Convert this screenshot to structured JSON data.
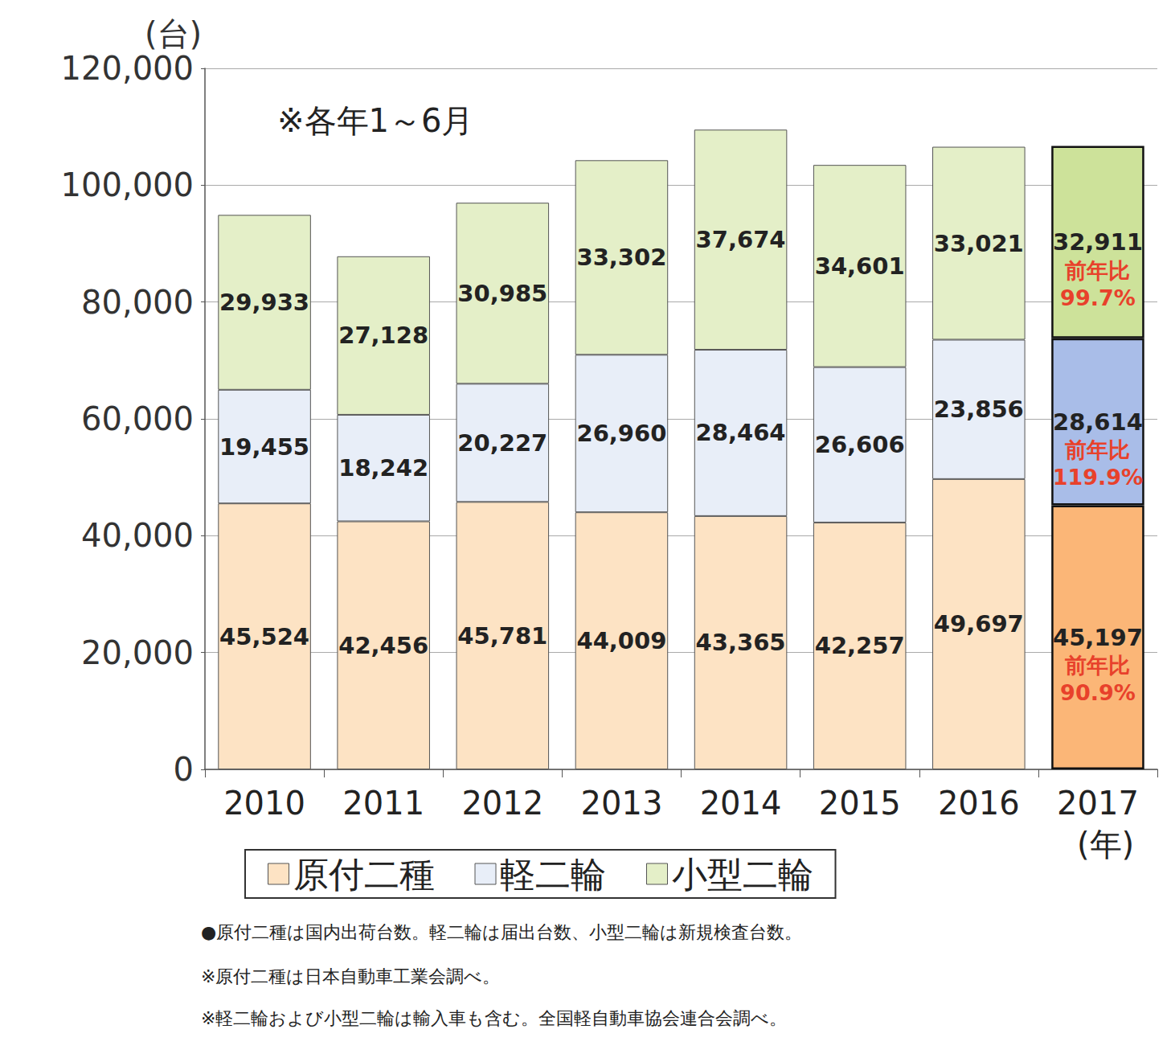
{
  "chart_data": {
    "type": "bar",
    "subtitle": "※各年1～6月",
    "y_label": "(台)",
    "x_label": "(年)",
    "categories": [
      "2010",
      "2011",
      "2012",
      "2013",
      "2014",
      "2015",
      "2016",
      "2017"
    ],
    "stacked": true,
    "data_labels": true,
    "grid": true,
    "legend": "bottom",
    "ylim": [
      0,
      120000
    ],
    "yticks": [
      0,
      {
        "value": 20000,
        "label": "20,000"
      },
      {
        "value": 40000,
        "label": "40,000"
      },
      {
        "value": 60000,
        "label": "60,000"
      },
      {
        "value": 80000,
        "label": "80,000"
      },
      {
        "value": 100000,
        "label": "100,000"
      },
      {
        "value": 120000,
        "label": "120,000"
      }
    ],
    "series": [
      {
        "name": "原付二種",
        "color": "#fde3c4",
        "colors": [
          "#fde3c4",
          "#fde3c4",
          "#fde3c4",
          "#fde3c4",
          "#fde3c4",
          "#fde3c4",
          "#fde3c4",
          "#fbb677"
        ],
        "values": [
          45524,
          42456,
          45781,
          44009,
          43365,
          42257,
          49697,
          45197
        ],
        "value_labels": [
          "45,524",
          "42,456",
          "45,781",
          "44,009",
          "43,365",
          "42,257",
          "49,697",
          "45,197"
        ]
      },
      {
        "name": "軽二輪",
        "color": "#e8eef8",
        "colors": [
          "#e8eef8",
          "#e8eef8",
          "#e8eef8",
          "#e8eef8",
          "#e8eef8",
          "#e8eef8",
          "#e8eef8",
          "#a9bde8"
        ],
        "values": [
          19455,
          18242,
          20227,
          26960,
          28464,
          26606,
          23856,
          28614
        ],
        "value_labels": [
          "19,455",
          "18,242",
          "20,227",
          "26,960",
          "28,464",
          "26,606",
          "23,856",
          "28,614"
        ]
      },
      {
        "name": "小型二輪",
        "color": "#e4efc8",
        "colors": [
          "#e4efc8",
          "#e4efc8",
          "#e4efc8",
          "#e4efc8",
          "#e4efc8",
          "#e4efc8",
          "#e4efc8",
          "#cde29a"
        ],
        "values": [
          29933,
          27128,
          30985,
          33302,
          37674,
          34601,
          33021,
          32911
        ],
        "value_labels": [
          "29,933",
          "27,128",
          "30,985",
          "33,302",
          "37,674",
          "34,601",
          "33,021",
          "32,911"
        ]
      }
    ],
    "annotations": [
      {
        "series": "原付二種",
        "category": "2017",
        "lines": [
          "前年比",
          "90.9%"
        ]
      },
      {
        "series": "軽二輪",
        "category": "2017",
        "lines": [
          "前年比",
          "119.9%"
        ]
      },
      {
        "series": "小型二輪",
        "category": "2017",
        "lines": [
          "前年比",
          "99.7%"
        ]
      }
    ],
    "notes": [
      "●原付二種は国内出荷台数。軽二輪は届出台数、小型二輪は新規検査台数。",
      "※原付二種は日本自動車工業会調べ。",
      "※軽二輪および小型二輪は輸入車も含む。全国軽自動車協会連合会調べ。"
    ]
  }
}
